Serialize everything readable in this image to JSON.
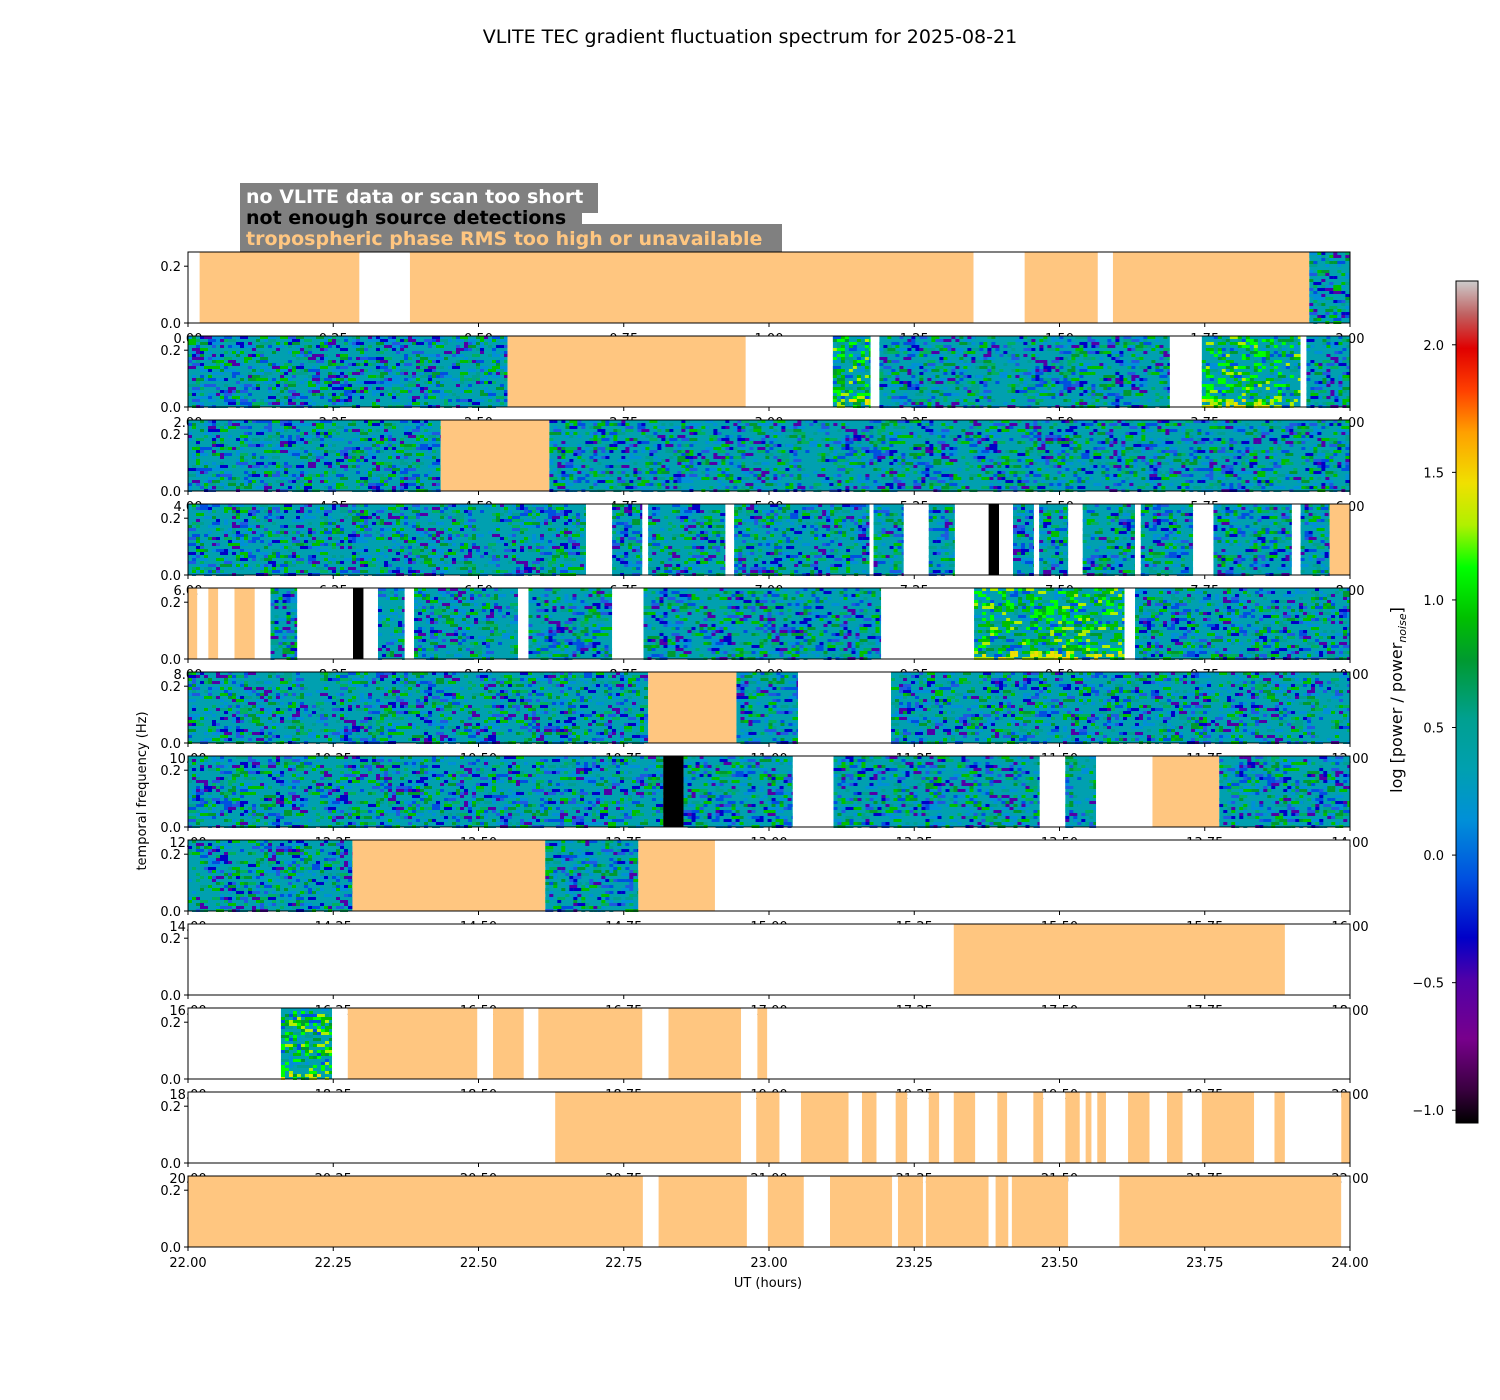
{
  "title": "VLITE TEC gradient fluctuation spectrum for 2025-08-21",
  "legend": {
    "items": [
      {
        "text": "no VLITE data or scan too short",
        "color": "#ffffff"
      },
      {
        "text": "not enough source detections",
        "color": "#000000"
      },
      {
        "text": "tropospheric phase RMS too high or unavailable",
        "color": "#ffc680"
      }
    ],
    "box_color": "#808080"
  },
  "chart_data": {
    "type": "heatmap",
    "title": "VLITE TEC gradient fluctuation spectrum for 2025-08-21",
    "xlabel": "UT (hours)",
    "ylabel": "temporal frequency (Hz)",
    "ylim": [
      0,
      0.25
    ],
    "yticks": [
      "0.0",
      "0.2"
    ],
    "colors": {
      "trop": "#ffc680",
      "fewsrc": "#000000",
      "nodata": "#ffffff"
    },
    "colorbar": {
      "label": "log [power / power",
      "label_sub": "noise",
      "label_end": "]",
      "range": [
        -1.05,
        2.25
      ],
      "ticks": [
        "−1.0",
        "−0.5",
        "0.0",
        "0.5",
        "1.0",
        "1.5",
        "2.0"
      ],
      "tick_values": [
        -1.0,
        -0.5,
        0.0,
        0.5,
        1.0,
        1.5,
        2.0
      ]
    },
    "panels": [
      {
        "start": 0,
        "ticks": [
          "0.00",
          "0.25",
          "0.50",
          "0.75",
          "1.00",
          "1.25",
          "1.50",
          "1.75",
          "2.00"
        ],
        "segments": [
          [
            0.0,
            0.02,
            "none"
          ],
          [
            0.02,
            0.295,
            "trop"
          ],
          [
            0.295,
            0.382,
            "none"
          ],
          [
            0.382,
            1.352,
            "trop"
          ],
          [
            1.352,
            1.44,
            "none"
          ],
          [
            1.44,
            1.566,
            "trop"
          ],
          [
            1.566,
            1.592,
            "none"
          ],
          [
            1.592,
            1.93,
            "trop"
          ],
          [
            1.93,
            2.0,
            "data"
          ]
        ]
      },
      {
        "start": 2,
        "ticks": [
          "2.00",
          "2.25",
          "2.50",
          "2.75",
          "3.00",
          "3.25",
          "3.50",
          "3.75",
          "4.00"
        ],
        "segments": [
          [
            2.0,
            2.55,
            "data"
          ],
          [
            2.55,
            2.96,
            "trop"
          ],
          [
            2.96,
            3.11,
            "none"
          ],
          [
            3.11,
            3.175,
            "hot"
          ],
          [
            3.175,
            3.19,
            "none"
          ],
          [
            3.19,
            3.69,
            "data"
          ],
          [
            3.69,
            3.745,
            "none"
          ],
          [
            3.745,
            3.915,
            "hot"
          ],
          [
            3.915,
            3.925,
            "none"
          ],
          [
            3.925,
            4.0,
            "data"
          ]
        ]
      },
      {
        "start": 4,
        "ticks": [
          "4.00",
          "4.25",
          "4.50",
          "4.75",
          "5.00",
          "5.25",
          "5.50",
          "5.75",
          "6.00"
        ],
        "segments": [
          [
            4.0,
            4.435,
            "data"
          ],
          [
            4.435,
            4.622,
            "trop"
          ],
          [
            4.622,
            6.0,
            "data"
          ]
        ]
      },
      {
        "start": 6,
        "ticks": [
          "6.00",
          "6.25",
          "6.50",
          "6.75",
          "7.00",
          "7.25",
          "7.50",
          "7.75",
          "8.00"
        ],
        "segments": [
          [
            6.0,
            6.685,
            "data"
          ],
          [
            6.685,
            6.73,
            "none"
          ],
          [
            6.73,
            6.782,
            "data"
          ],
          [
            6.782,
            6.792,
            "none"
          ],
          [
            6.792,
            6.925,
            "data"
          ],
          [
            6.925,
            6.94,
            "none"
          ],
          [
            6.94,
            7.173,
            "data"
          ],
          [
            7.173,
            7.18,
            "none"
          ],
          [
            7.18,
            7.232,
            "data"
          ],
          [
            7.232,
            7.275,
            "none"
          ],
          [
            7.275,
            7.32,
            "data"
          ],
          [
            7.32,
            7.378,
            "none"
          ],
          [
            7.378,
            7.396,
            "fewsrc"
          ],
          [
            7.396,
            7.42,
            "none"
          ],
          [
            7.42,
            7.456,
            "data"
          ],
          [
            7.456,
            7.465,
            "none"
          ],
          [
            7.465,
            7.515,
            "data"
          ],
          [
            7.515,
            7.54,
            "none"
          ],
          [
            7.54,
            7.63,
            "data"
          ],
          [
            7.63,
            7.64,
            "none"
          ],
          [
            7.64,
            7.73,
            "data"
          ],
          [
            7.73,
            7.765,
            "none"
          ],
          [
            7.765,
            7.9,
            "data"
          ],
          [
            7.9,
            7.915,
            "none"
          ],
          [
            7.915,
            7.965,
            "data"
          ],
          [
            7.965,
            8.0,
            "trop"
          ]
        ]
      },
      {
        "start": 8,
        "ticks": [
          "8.00",
          "8.25",
          "8.50",
          "8.75",
          "9.00",
          "9.25",
          "9.50",
          "9.75",
          "10.00"
        ],
        "segments": [
          [
            8.0,
            8.016,
            "trop"
          ],
          [
            8.016,
            8.035,
            "none"
          ],
          [
            8.035,
            8.052,
            "trop"
          ],
          [
            8.052,
            8.08,
            "none"
          ],
          [
            8.08,
            8.115,
            "trop"
          ],
          [
            8.115,
            8.142,
            "none"
          ],
          [
            8.142,
            8.188,
            "data"
          ],
          [
            8.188,
            8.284,
            "none"
          ],
          [
            8.284,
            8.302,
            "fewsrc"
          ],
          [
            8.302,
            8.327,
            "none"
          ],
          [
            8.327,
            8.373,
            "data"
          ],
          [
            8.373,
            8.389,
            "none"
          ],
          [
            8.389,
            8.568,
            "data"
          ],
          [
            8.568,
            8.586,
            "none"
          ],
          [
            8.586,
            8.73,
            "data"
          ],
          [
            8.73,
            8.784,
            "none"
          ],
          [
            8.784,
            9.193,
            "data"
          ],
          [
            9.193,
            9.353,
            "none"
          ],
          [
            9.353,
            9.612,
            "hot"
          ],
          [
            9.612,
            9.63,
            "none"
          ],
          [
            9.63,
            10.0,
            "data"
          ]
        ]
      },
      {
        "start": 10,
        "ticks": [
          "10.00",
          "10.25",
          "10.50",
          "10.75",
          "11.00",
          "11.25",
          "11.50",
          "11.75",
          "12.00"
        ],
        "segments": [
          [
            10.0,
            10.792,
            "data"
          ],
          [
            10.792,
            10.944,
            "trop"
          ],
          [
            10.944,
            11.05,
            "data"
          ],
          [
            11.05,
            11.21,
            "none"
          ],
          [
            11.21,
            12.0,
            "data"
          ]
        ]
      },
      {
        "start": 12,
        "ticks": [
          "12.00",
          "12.25",
          "12.50",
          "12.75",
          "13.00",
          "13.25",
          "13.50",
          "13.75",
          "14.00"
        ],
        "segments": [
          [
            12.0,
            12.818,
            "data"
          ],
          [
            12.818,
            12.853,
            "fewsrc"
          ],
          [
            12.853,
            13.041,
            "data"
          ],
          [
            13.041,
            13.111,
            "none"
          ],
          [
            13.111,
            13.466,
            "data"
          ],
          [
            13.466,
            13.51,
            "none"
          ],
          [
            13.51,
            13.563,
            "data"
          ],
          [
            13.563,
            13.66,
            "none"
          ],
          [
            13.66,
            13.775,
            "trop"
          ],
          [
            13.775,
            14.0,
            "data"
          ]
        ]
      },
      {
        "start": 14,
        "ticks": [
          "14.00",
          "14.25",
          "14.50",
          "14.75",
          "15.00",
          "15.25",
          "15.50",
          "15.75",
          "16.00"
        ],
        "segments": [
          [
            14.0,
            14.283,
            "data"
          ],
          [
            14.283,
            14.615,
            "trop"
          ],
          [
            14.615,
            14.775,
            "data"
          ],
          [
            14.775,
            14.907,
            "trop"
          ],
          [
            14.907,
            16.0,
            "none"
          ]
        ]
      },
      {
        "start": 16,
        "ticks": [
          "16.00",
          "16.25",
          "16.50",
          "16.75",
          "17.00",
          "17.25",
          "17.50",
          "17.75",
          "18.00"
        ],
        "segments": [
          [
            16.0,
            17.318,
            "none"
          ],
          [
            17.318,
            17.888,
            "trop"
          ],
          [
            17.888,
            18.0,
            "none"
          ]
        ]
      },
      {
        "start": 18,
        "ticks": [
          "18.00",
          "18.25",
          "18.50",
          "18.75",
          "19.00",
          "19.25",
          "19.50",
          "19.75",
          "20.00"
        ],
        "segments": [
          [
            18.0,
            18.16,
            "none"
          ],
          [
            18.16,
            18.248,
            "hot"
          ],
          [
            18.248,
            18.275,
            "none"
          ],
          [
            18.275,
            18.498,
            "trop"
          ],
          [
            18.498,
            18.525,
            "none"
          ],
          [
            18.525,
            18.578,
            "trop"
          ],
          [
            18.578,
            18.603,
            "none"
          ],
          [
            18.603,
            18.782,
            "trop"
          ],
          [
            18.782,
            18.827,
            "none"
          ],
          [
            18.827,
            18.952,
            "trop"
          ],
          [
            18.952,
            18.98,
            "none"
          ],
          [
            18.98,
            18.997,
            "trop"
          ],
          [
            18.997,
            20.0,
            "none"
          ]
        ]
      },
      {
        "start": 20,
        "ticks": [
          "20.00",
          "20.25",
          "20.50",
          "20.75",
          "21.00",
          "21.25",
          "21.50",
          "21.75",
          "22.00"
        ],
        "segments": [
          [
            20.0,
            20.632,
            "none"
          ],
          [
            20.632,
            20.952,
            "trop"
          ],
          [
            20.952,
            20.978,
            "none"
          ],
          [
            20.978,
            21.018,
            "trop"
          ],
          [
            21.018,
            21.055,
            "none"
          ],
          [
            21.055,
            21.137,
            "trop"
          ],
          [
            21.137,
            21.16,
            "none"
          ],
          [
            21.16,
            21.185,
            "trop"
          ],
          [
            21.185,
            21.218,
            "none"
          ],
          [
            21.218,
            21.238,
            "trop"
          ],
          [
            21.238,
            21.275,
            "none"
          ],
          [
            21.275,
            21.293,
            "trop"
          ],
          [
            21.293,
            21.318,
            "none"
          ],
          [
            21.318,
            21.355,
            "trop"
          ],
          [
            21.355,
            21.393,
            "none"
          ],
          [
            21.393,
            21.41,
            "trop"
          ],
          [
            21.41,
            21.455,
            "none"
          ],
          [
            21.455,
            21.472,
            "trop"
          ],
          [
            21.472,
            21.51,
            "none"
          ],
          [
            21.51,
            21.535,
            "trop"
          ],
          [
            21.535,
            21.545,
            "none"
          ],
          [
            21.545,
            21.555,
            "trop"
          ],
          [
            21.555,
            21.565,
            "none"
          ],
          [
            21.565,
            21.58,
            "trop"
          ],
          [
            21.58,
            21.618,
            "none"
          ],
          [
            21.618,
            21.655,
            "trop"
          ],
          [
            21.655,
            21.685,
            "none"
          ],
          [
            21.685,
            21.712,
            "trop"
          ],
          [
            21.712,
            21.745,
            "none"
          ],
          [
            21.745,
            21.835,
            "trop"
          ],
          [
            21.835,
            21.87,
            "none"
          ],
          [
            21.87,
            21.888,
            "trop"
          ],
          [
            21.888,
            21.985,
            "none"
          ],
          [
            21.985,
            22.0,
            "trop"
          ]
        ]
      },
      {
        "start": 22,
        "ticks": [
          "22.00",
          "22.25",
          "22.50",
          "22.75",
          "23.00",
          "23.25",
          "23.50",
          "23.75",
          "24.00"
        ],
        "segments": [
          [
            22.0,
            22.783,
            "trop"
          ],
          [
            22.783,
            22.81,
            "none"
          ],
          [
            22.81,
            22.962,
            "trop"
          ],
          [
            22.962,
            22.998,
            "none"
          ],
          [
            22.998,
            23.06,
            "trop"
          ],
          [
            23.06,
            23.105,
            "none"
          ],
          [
            23.105,
            23.212,
            "trop"
          ],
          [
            23.212,
            23.222,
            "none"
          ],
          [
            23.222,
            23.265,
            "trop"
          ],
          [
            23.265,
            23.27,
            "none"
          ],
          [
            23.27,
            23.378,
            "trop"
          ],
          [
            23.378,
            23.39,
            "none"
          ],
          [
            23.39,
            23.412,
            "trop"
          ],
          [
            23.412,
            23.418,
            "none"
          ],
          [
            23.418,
            23.515,
            "trop"
          ],
          [
            23.515,
            23.603,
            "none"
          ],
          [
            23.603,
            23.985,
            "trop"
          ],
          [
            23.985,
            24.0,
            "none"
          ]
        ]
      }
    ]
  }
}
